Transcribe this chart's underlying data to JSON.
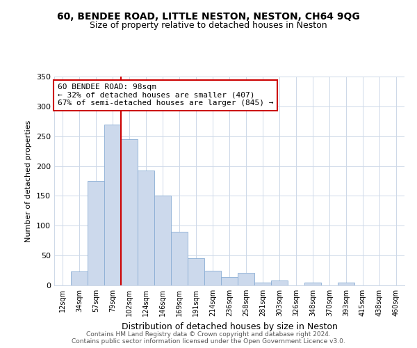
{
  "title": "60, BENDEE ROAD, LITTLE NESTON, NESTON, CH64 9QG",
  "subtitle": "Size of property relative to detached houses in Neston",
  "xlabel": "Distribution of detached houses by size in Neston",
  "ylabel": "Number of detached properties",
  "bar_color": "#ccd9ec",
  "bar_edge_color": "#8aadd4",
  "bin_labels": [
    "12sqm",
    "34sqm",
    "57sqm",
    "79sqm",
    "102sqm",
    "124sqm",
    "146sqm",
    "169sqm",
    "191sqm",
    "214sqm",
    "236sqm",
    "258sqm",
    "281sqm",
    "303sqm",
    "326sqm",
    "348sqm",
    "370sqm",
    "393sqm",
    "415sqm",
    "438sqm",
    "460sqm"
  ],
  "bar_values": [
    0,
    23,
    175,
    270,
    245,
    192,
    150,
    90,
    46,
    25,
    14,
    21,
    5,
    8,
    0,
    5,
    0,
    5,
    0,
    0,
    0
  ],
  "vline_x_index": 3.5,
  "vline_color": "#cc0000",
  "annotation_text": "60 BENDEE ROAD: 98sqm\n← 32% of detached houses are smaller (407)\n67% of semi-detached houses are larger (845) →",
  "annotation_box_color": "#ffffff",
  "annotation_box_edge_color": "#cc0000",
  "ylim": [
    0,
    350
  ],
  "yticks": [
    0,
    50,
    100,
    150,
    200,
    250,
    300,
    350
  ],
  "footer": "Contains HM Land Registry data © Crown copyright and database right 2024.\nContains public sector information licensed under the Open Government Licence v3.0.",
  "background_color": "#ffffff",
  "grid_color": "#cdd8e8"
}
